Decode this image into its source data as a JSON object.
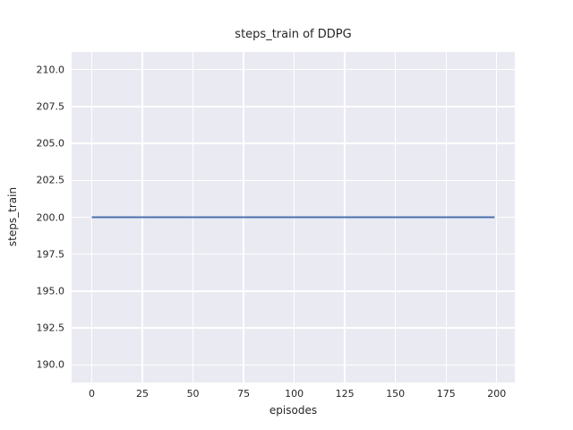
{
  "figure": {
    "background_color": "#ffffff",
    "axes_background_color": "#eaeaf2",
    "grid_color": "#ffffff",
    "text_color": "#262626"
  },
  "chart_data": {
    "type": "line",
    "title": "steps_train of DDPG",
    "xlabel": "episodes",
    "ylabel": "steps_train",
    "xlim": [
      -9.95,
      208.95
    ],
    "ylim": [
      188.8,
      211.2
    ],
    "x_ticks": [
      0,
      25,
      50,
      75,
      100,
      125,
      150,
      175,
      200
    ],
    "y_ticks": [
      190.0,
      192.5,
      195.0,
      197.5,
      200.0,
      202.5,
      205.0,
      207.5,
      210.0
    ],
    "x_tick_decimals": 0,
    "y_tick_decimals": 1,
    "grid": true,
    "legend": null,
    "series": [
      {
        "name": "steps_train",
        "color": "#4c72b0",
        "line_width": 2,
        "x": [
          0,
          199
        ],
        "y": [
          200,
          200
        ]
      }
    ]
  }
}
